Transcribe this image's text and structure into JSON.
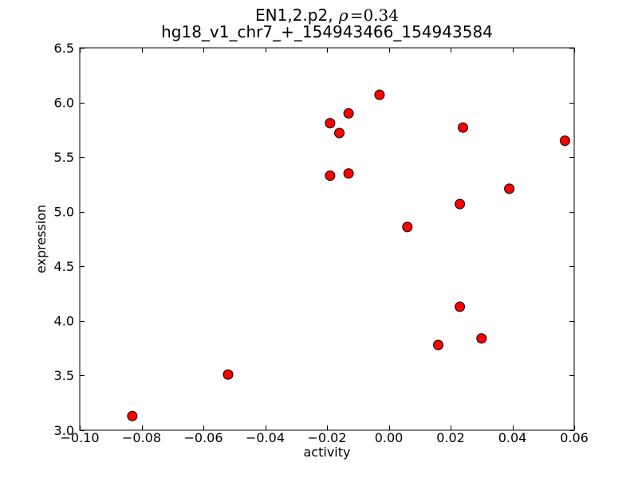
{
  "title": {
    "line1_prefix": "EN1,2.p2, ",
    "rho": "ρ",
    "equation": "=0.34",
    "line2": "hg18_v1_chr7_+_154943466_154943584"
  },
  "axes": {
    "xlabel": "activity",
    "ylabel": "expression"
  },
  "chart_data": {
    "type": "scatter",
    "title": "EN1,2.p2, ρ=0.34",
    "subtitle": "hg18_v1_chr7_+_154943466_154943584",
    "correlation_rho": 0.34,
    "xlabel": "activity",
    "ylabel": "expression",
    "xlim": [
      -0.1,
      0.06
    ],
    "ylim": [
      3.0,
      6.5
    ],
    "xticks": [
      -0.1,
      -0.08,
      -0.06,
      -0.04,
      -0.02,
      0.0,
      0.02,
      0.04,
      0.06
    ],
    "xtick_labels": [
      "−0.10",
      "−0.08",
      "−0.06",
      "−0.04",
      "−0.02",
      "0.00",
      "0.02",
      "0.04",
      "0.06"
    ],
    "yticks": [
      3.0,
      3.5,
      4.0,
      4.5,
      5.0,
      5.5,
      6.0,
      6.5
    ],
    "ytick_labels": [
      "3.0",
      "3.5",
      "4.0",
      "4.5",
      "5.0",
      "5.5",
      "6.0",
      "6.5"
    ],
    "grid": false,
    "legend": null,
    "marker": {
      "shape": "circle",
      "fill": "#ff0000",
      "edge": "#000000",
      "radius": 6
    },
    "frame_color": "#000000",
    "points": [
      {
        "x": -0.083,
        "y": 3.13
      },
      {
        "x": -0.052,
        "y": 3.51
      },
      {
        "x": -0.019,
        "y": 5.81
      },
      {
        "x": -0.016,
        "y": 5.72
      },
      {
        "x": -0.013,
        "y": 5.9
      },
      {
        "x": -0.019,
        "y": 5.33
      },
      {
        "x": -0.013,
        "y": 5.35
      },
      {
        "x": -0.003,
        "y": 6.07
      },
      {
        "x": 0.006,
        "y": 4.86
      },
      {
        "x": 0.016,
        "y": 3.78
      },
      {
        "x": 0.023,
        "y": 4.13
      },
      {
        "x": 0.03,
        "y": 3.84
      },
      {
        "x": 0.023,
        "y": 5.07
      },
      {
        "x": 0.024,
        "y": 5.77
      },
      {
        "x": 0.039,
        "y": 5.21
      },
      {
        "x": 0.057,
        "y": 5.65
      }
    ]
  }
}
